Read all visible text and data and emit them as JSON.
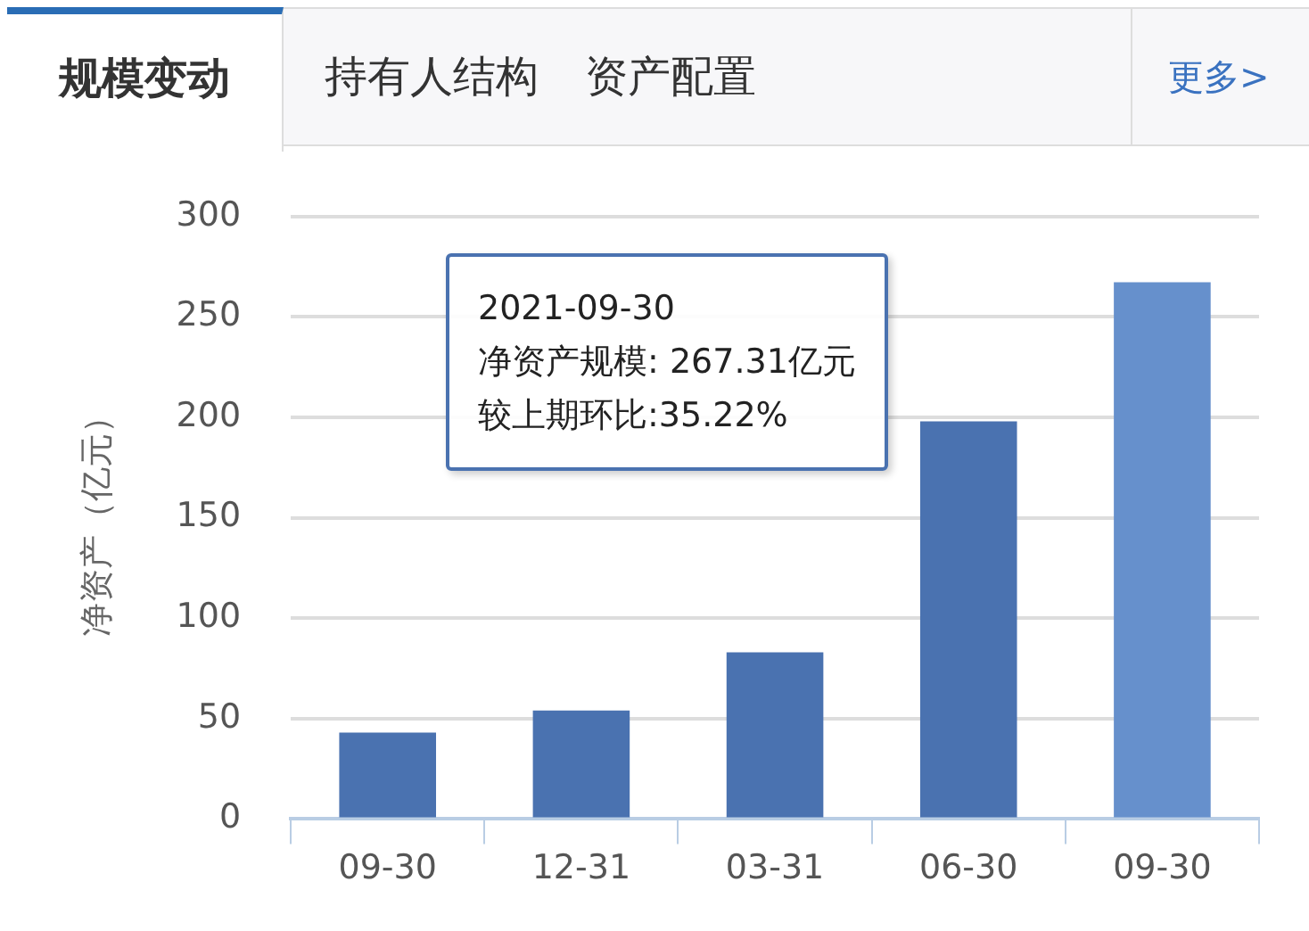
{
  "chart_data": {
    "type": "bar",
    "title": "规模变动",
    "ylabel": "净资产（亿元）",
    "annotations": [
      "持有人结构",
      "资产配置",
      "更多>",
      "2021-09-30",
      "净资产规模: 267.31亿元",
      "较上期环比:35.22%"
    ],
    "categories": [
      "09-30",
      "12-31",
      "03-31",
      "06-30",
      "09-30"
    ],
    "values": [
      43,
      54,
      83,
      198,
      267.31
    ],
    "colors": [
      "#4a72b0",
      "#4a72b0",
      "#4a72b0",
      "#4a72b0",
      "#6690cc"
    ],
    "ylim": [
      0,
      300
    ],
    "yticks": [
      0,
      50,
      100,
      150,
      200,
      250,
      300
    ],
    "grid": "y",
    "legend": false
  }
}
